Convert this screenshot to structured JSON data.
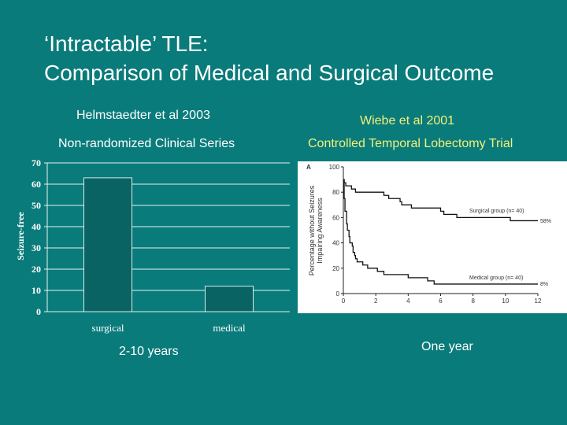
{
  "slide": {
    "title_line1": "‘Intractable’ TLE:",
    "title_line2": "Comparison of Medical and Surgical Outcome",
    "left_source": "Helmstaedter et al 2003",
    "left_design": "Non-randomized Clinical Series",
    "left_followup": "2-10 years",
    "right_source": "Wiebe et al 2001",
    "right_design": "Controlled Temporal Lobectomy Trial",
    "right_followup": "One year"
  },
  "colors": {
    "background": "#0a7b7b",
    "bar": "#0a6363",
    "highlight_text": "#f2f07a"
  },
  "chart_data": [
    {
      "type": "bar",
      "categories": [
        "surgical",
        "medical"
      ],
      "values": [
        63,
        12
      ],
      "ylabel": "Seizure-free",
      "xlabel": "",
      "ylim": [
        0,
        70
      ],
      "yticks": [
        0,
        10,
        20,
        30,
        40,
        50,
        60,
        70
      ],
      "grid": true
    },
    {
      "type": "line",
      "panel_label": "A",
      "ylabel": "Percentage without Seizures Impairing Awareness",
      "xlim": [
        0,
        12
      ],
      "ylim": [
        0,
        100
      ],
      "xticks": [
        0,
        2,
        4,
        6,
        8,
        10,
        12
      ],
      "yticks": [
        0,
        20,
        40,
        60,
        80,
        100
      ],
      "step": true,
      "series": [
        {
          "name": "Surgical group (n= 40)",
          "end_label": "58%",
          "x": [
            0,
            0.05,
            0.15,
            0.5,
            0.75,
            2.5,
            2.8,
            3.5,
            3.6,
            4.2,
            6.0,
            6.2,
            7.0,
            10.3,
            12
          ],
          "y": [
            90,
            87.5,
            85,
            82.5,
            80,
            77.5,
            75,
            72.5,
            70,
            67.5,
            65,
            62.5,
            60,
            57.5,
            57.5
          ]
        },
        {
          "name": "Medical group (n= 40)",
          "end_label": "8%",
          "x": [
            0,
            0.05,
            0.1,
            0.2,
            0.25,
            0.35,
            0.4,
            0.55,
            0.6,
            0.7,
            0.75,
            0.85,
            1.2,
            1.5,
            2.1,
            2.5,
            4.0,
            5.2,
            5.6,
            12
          ],
          "y": [
            90,
            75,
            65,
            55,
            50,
            45,
            40,
            37.5,
            32.5,
            30,
            27.5,
            25,
            22.5,
            20,
            17.5,
            15,
            12.5,
            10,
            7.5,
            7.5
          ]
        }
      ]
    }
  ]
}
